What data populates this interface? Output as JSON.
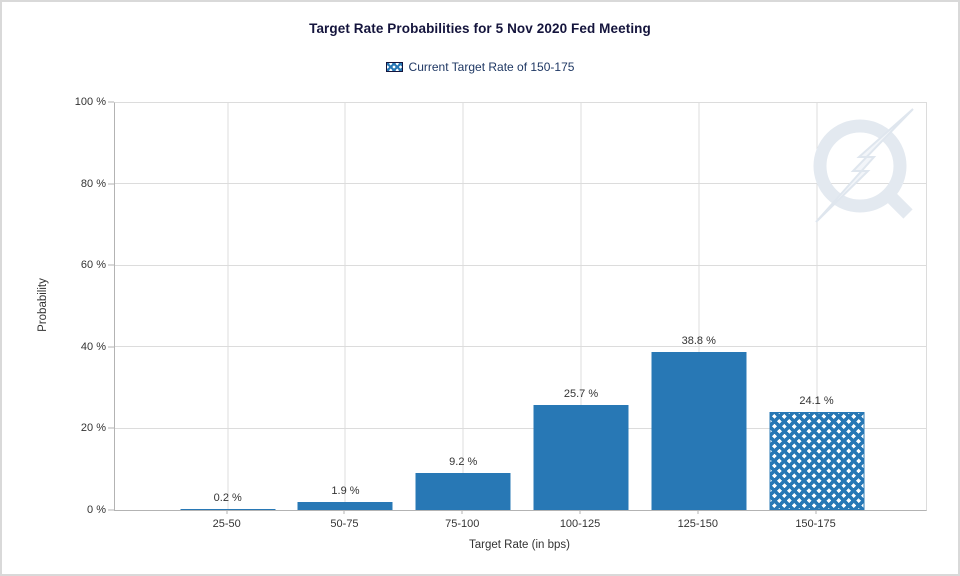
{
  "chart_data": {
    "type": "bar",
    "title": "Target Rate Probabilities for 5 Nov 2020 Fed Meeting",
    "legend": {
      "label": "Current Target Rate of 150-175",
      "swatch_style": "blue-crosshatch",
      "position": "top-center"
    },
    "categories": [
      "25-50",
      "50-75",
      "75-100",
      "100-125",
      "125-150",
      "150-175"
    ],
    "values": [
      0.2,
      1.9,
      9.2,
      25.7,
      38.8,
      24.1
    ],
    "value_labels": [
      "0.2 %",
      "1.9 %",
      "9.2 %",
      "25.7 %",
      "38.8 %",
      "24.1 %"
    ],
    "highlighted_category": "150-175",
    "highlight_style": "crosshatch",
    "xlabel": "Target Rate (in bps)",
    "ylabel": "Probability",
    "ylim": [
      0,
      100
    ],
    "yticks": [
      "0 %",
      "20 %",
      "40 %",
      "60 %",
      "80 %",
      "100 %"
    ],
    "ytick_values": [
      0,
      20,
      40,
      60,
      80,
      100
    ],
    "grid": true,
    "colors": {
      "bar": "#2878b5",
      "grid": "#dcdcdc",
      "axis": "#b3b3b3",
      "title": "#14143c",
      "legend_text": "#1f3864",
      "tick_text": "#333333",
      "watermark": "#e3e9f0"
    }
  },
  "watermark": {
    "name": "q-lightning-logo"
  }
}
